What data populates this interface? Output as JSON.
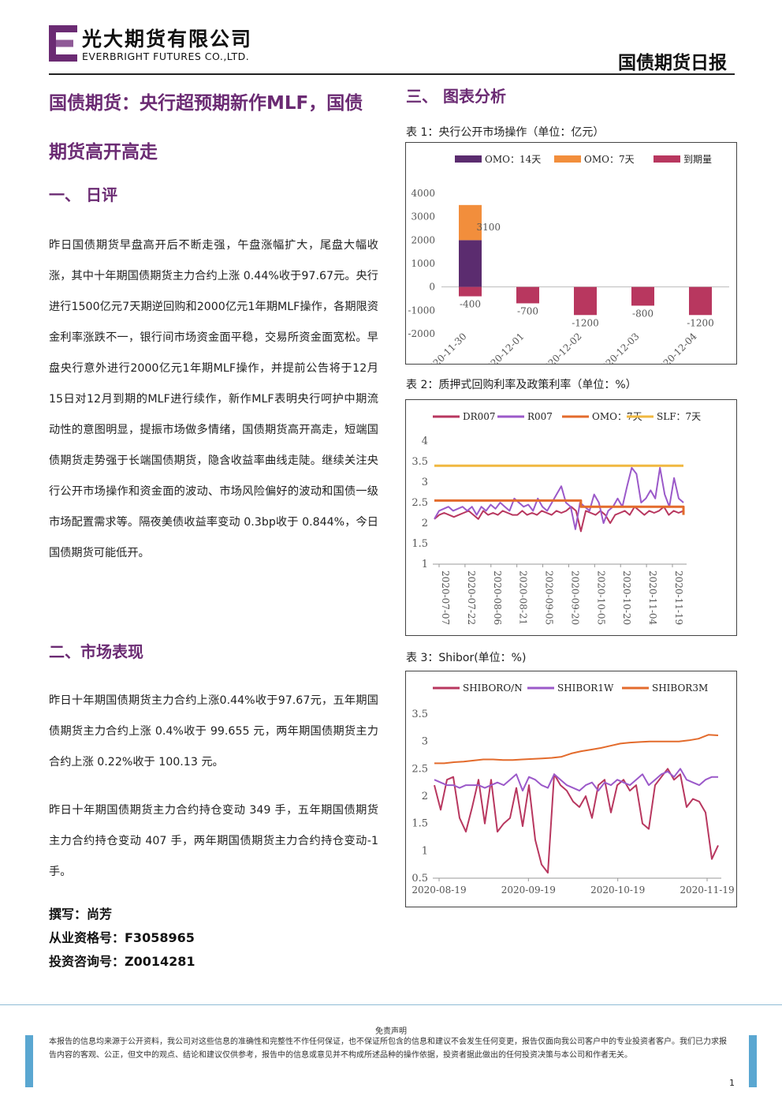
{
  "header": {
    "logo_cn": "光大期货有限公司",
    "logo_en": "EVERBRIGHT FUTURES CO.,LTD.",
    "report_type": "国债期货日报"
  },
  "title": "国债期货：央行超预期新作MLF，国债期货高开高走",
  "section1": {
    "title": "一、  日评",
    "body": "昨日国债期货早盘高开后不断走强，午盘涨幅扩大，尾盘大幅收涨，其中十年期国债期货主力合约上涨 0.44%收于97.67元。央行进行1500亿元7天期逆回购和2000亿元1年期MLF操作，各期限资金利率涨跌不一，银行间市场资金面平稳，交易所资金面宽松。早盘央行意外进行2000亿元1年期MLF操作，并提前公告将于12月15日对12月到期的MLF进行续作，新作MLF表明央行呵护中期流动性的意图明显，提振市场做多情绪，国债期货高开高走，短端国债期货走势强于长端国债期货，隐含收益率曲线走陡。继续关注央行公开市场操作和资金面的波动、市场风险偏好的波动和国债一级市场配置需求等。隔夜美债收益率变动 0.3bp收于 0.844%，今日国债期货可能低开。"
  },
  "section2": {
    "title": "二、市场表现",
    "para1": "昨日十年期国债期货主力合约上涨0.44%收于97.67元，五年期国债期货主力合约上涨 0.4%收于 99.655 元，两年期国债期货主力合约上涨 0.22%收于 100.13 元。",
    "para2": "昨日十年期国债期货主力合约持仓变动 349 手，五年期国债期货主力合约持仓变动 407 手，两年期国债期货主力合约持仓变动-1 手。"
  },
  "author": {
    "writer": "撰写：尚芳",
    "qualification": "从业资格号：F3058965",
    "consult": "投资咨询号：Z0014281"
  },
  "section3": {
    "title": "三、  图表分析"
  },
  "chart_data": [
    {
      "type": "bar",
      "caption": "表 1：央行公开市场操作（单位：亿元）",
      "categories": [
        "2020-11-30",
        "2020-12-01",
        "2020-12-02",
        "2020-12-03",
        "2020-12-04"
      ],
      "series": [
        {
          "name": "OMO：14天",
          "color": "#5b2c6f",
          "values": [
            2000,
            0,
            0,
            0,
            0
          ]
        },
        {
          "name": "OMO：7天",
          "color": "#f28e3c",
          "values": [
            1500,
            0,
            0,
            0,
            0
          ]
        },
        {
          "name": "到期量",
          "color": "#b8375f",
          "values": [
            -400,
            -700,
            -1200,
            -800,
            -1200
          ]
        }
      ],
      "bar_labels": [
        "3100",
        "-400",
        "-700",
        "-1200",
        "-800",
        "-1200"
      ],
      "yticks": [
        "4000",
        "3000",
        "2000",
        "1000",
        "0",
        "-1000",
        "-2000"
      ],
      "ylim": [
        -2000,
        4000
      ],
      "stacked": true,
      "legend": "top"
    },
    {
      "type": "line",
      "caption": "表 2：质押式回购利率及政策利率（单位：%）",
      "x_ticks": [
        "2020-07-07",
        "2020-07-22",
        "2020-08-06",
        "2020-08-21",
        "2020-09-05",
        "2020-09-20",
        "2020-10-05",
        "2020-10-20",
        "2020-11-04",
        "2020-11-19"
      ],
      "yticks": [
        "4",
        "3.5",
        "3",
        "2.5",
        "2",
        "1.5",
        "1"
      ],
      "ylim": [
        1,
        4
      ],
      "series": [
        {
          "name": "DR007",
          "color": "#b8375f",
          "values": [
            2.1,
            2.2,
            2.25,
            2.2,
            2.15,
            2.2,
            2.25,
            2.3,
            2.2,
            2.1,
            2.3,
            2.2,
            2.25,
            2.2,
            2.3,
            2.25,
            2.2,
            2.2,
            2.3,
            2.2,
            2.25,
            2.2,
            2.3,
            2.25,
            2.2,
            2.3,
            2.25,
            2.3,
            2.4,
            2.3,
            1.8,
            2.3,
            2.25,
            2.2,
            2.3,
            2.2,
            2.0,
            2.2,
            2.25,
            2.3,
            2.2,
            2.4,
            2.3,
            2.2,
            2.3,
            2.25,
            2.3,
            2.4,
            2.2,
            2.3,
            2.25,
            2.3
          ]
        },
        {
          "name": "R007",
          "color": "#9b59c9",
          "values": [
            2.1,
            2.3,
            2.35,
            2.4,
            2.3,
            2.35,
            2.4,
            2.3,
            2.4,
            2.2,
            2.4,
            2.3,
            2.45,
            2.35,
            2.5,
            2.4,
            2.3,
            2.6,
            2.5,
            2.4,
            2.45,
            2.3,
            2.6,
            2.4,
            2.3,
            2.5,
            2.7,
            2.9,
            2.5,
            2.4,
            1.85,
            2.5,
            2.4,
            2.3,
            2.7,
            2.5,
            2.0,
            2.3,
            2.4,
            2.6,
            2.4,
            2.9,
            3.35,
            3.2,
            2.5,
            2.6,
            2.8,
            2.6,
            3.35,
            2.7,
            2.4,
            3.1,
            2.6,
            2.5
          ]
        },
        {
          "name": "OMO：7天",
          "color": "#e36b2c",
          "values": [
            2.55,
            2.55,
            2.55,
            2.55,
            2.55,
            2.55,
            2.55,
            2.55,
            2.55,
            2.55,
            2.4,
            2.4,
            2.4,
            2.4,
            2.4,
            2.4,
            2.4,
            2.2
          ]
        },
        {
          "name": "SLF：7天",
          "color": "#f0b840",
          "values": [
            3.4,
            3.4
          ]
        }
      ],
      "legend": "top"
    },
    {
      "type": "line",
      "caption": "表 3：Shibor(单位：%)",
      "x_ticks": [
        "2020-08-19",
        "2020-09-19",
        "2020-10-19",
        "2020-11-19"
      ],
      "yticks": [
        "3.5",
        "3",
        "2.5",
        "2",
        "1.5",
        "1",
        "0.5"
      ],
      "ylim": [
        0.5,
        3.5
      ],
      "series": [
        {
          "name": "SHIBORO/N",
          "color": "#b8375f",
          "values": [
            2.2,
            1.75,
            2.3,
            2.35,
            1.6,
            1.35,
            1.8,
            2.3,
            1.5,
            2.3,
            1.35,
            1.5,
            1.6,
            2.15,
            1.45,
            2.2,
            1.2,
            0.75,
            0.6,
            2.4,
            2.2,
            2.1,
            1.9,
            1.8,
            2.0,
            1.6,
            2.2,
            2.3,
            1.7,
            2.2,
            2.3,
            2.1,
            2.2,
            1.5,
            1.4,
            2.2,
            2.35,
            2.5,
            2.3,
            2.4,
            1.8,
            1.95,
            1.9,
            1.7,
            0.85,
            1.1
          ]
        },
        {
          "name": "SHIBOR1W",
          "color": "#9b59c9",
          "values": [
            2.3,
            2.25,
            2.2,
            2.2,
            2.15,
            2.2,
            2.2,
            2.2,
            2.15,
            2.2,
            2.25,
            2.2,
            2.3,
            2.4,
            2.1,
            2.35,
            2.3,
            2.2,
            2.15,
            2.4,
            2.3,
            2.2,
            2.15,
            2.1,
            2.2,
            2.25,
            2.1,
            2.25,
            2.2,
            2.3,
            2.25,
            2.2,
            2.3,
            2.4,
            2.2,
            2.3,
            2.4,
            2.45,
            2.35,
            2.5,
            2.3,
            2.25,
            2.2,
            2.3,
            2.35,
            2.35
          ]
        },
        {
          "name": "SHIBOR3M",
          "color": "#e36b2c",
          "values": [
            2.6,
            2.6,
            2.62,
            2.63,
            2.65,
            2.67,
            2.67,
            2.66,
            2.66,
            2.67,
            2.68,
            2.69,
            2.7,
            2.72,
            2.78,
            2.82,
            2.85,
            2.88,
            2.92,
            2.96,
            2.98,
            2.99,
            3.0,
            3.0,
            3.0,
            3.0,
            3.02,
            3.05,
            3.12,
            3.11
          ]
        }
      ],
      "legend": "top"
    }
  ],
  "footer": {
    "disclaimer_title": "免责声明",
    "disclaimer": "本报告的信息均来源于公开资料，我公司对这些信息的准确性和完整性不作任何保证，也不保证所包含的信息和建议不会发生任何变更，报告仅面向我公司客户中的专业投资者客户。我们已力求报告内容的客观、公正，但文中的观点、结论和建议仅供参考，报告中的信息或意见并不构成所述品种的操作依据，投资者据此做出的任何投资决策与本公司和作者无关。",
    "page": "1"
  }
}
